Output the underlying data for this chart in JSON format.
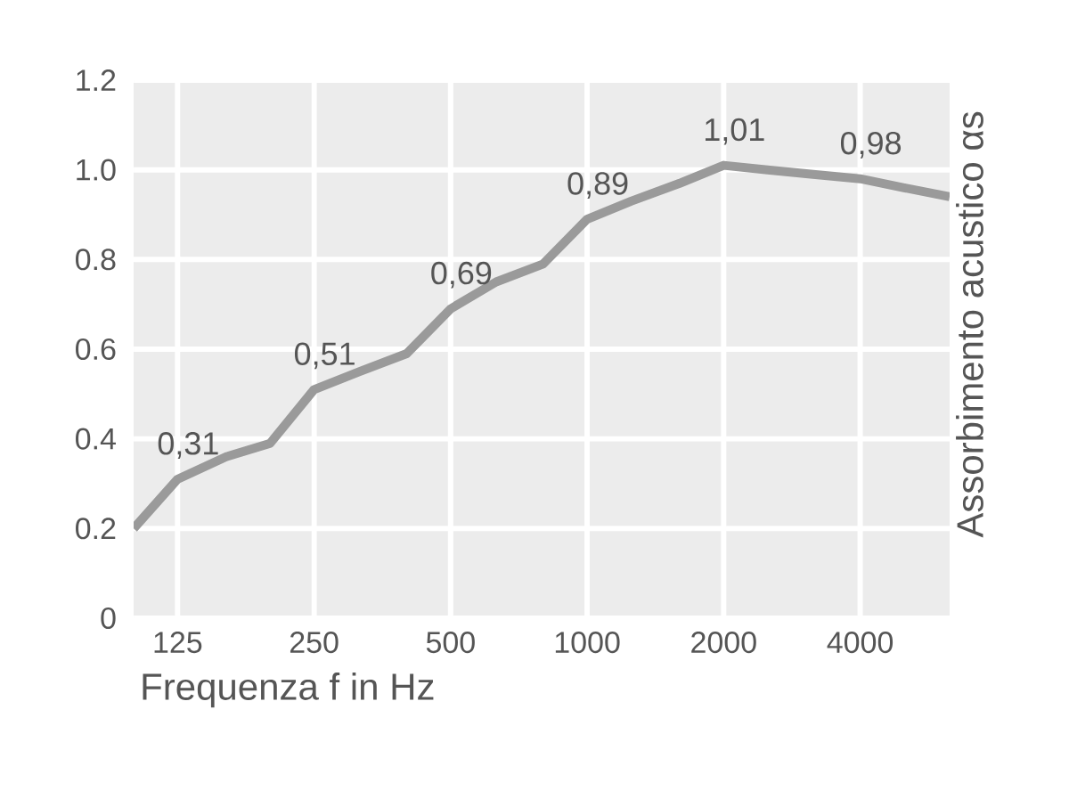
{
  "chart_data": {
    "type": "line",
    "xlabel": "Frequenza f in Hz",
    "ylabel": "Assorbimento acustico αs",
    "log": "x",
    "grid": true,
    "x": [
      100,
      125,
      160,
      200,
      250,
      315,
      400,
      500,
      630,
      800,
      1000,
      1250,
      1600,
      2000,
      2500,
      3150,
      4000,
      5000,
      6300
    ],
    "series": [
      {
        "color": "#9a9a9a",
        "values": [
          0.2,
          0.31,
          0.36,
          0.39,
          0.51,
          0.55,
          0.59,
          0.69,
          0.75,
          0.79,
          0.89,
          0.93,
          0.97,
          1.01,
          1.0,
          0.99,
          0.98,
          0.96,
          0.94
        ],
        "value_labels": [
          null,
          "0,31",
          null,
          null,
          "0,51",
          null,
          null,
          "0,69",
          null,
          null,
          "0,89",
          null,
          null,
          "1,01",
          null,
          null,
          "0,98",
          null,
          null
        ]
      }
    ],
    "xlim": [
      100,
      6300
    ],
    "xticks": [
      125,
      250,
      500,
      1000,
      2000,
      4000
    ],
    "ylim": [
      0,
      1.2
    ],
    "yticks": [
      0,
      0.2,
      0.4,
      0.6,
      0.8,
      {
        "value": 1,
        "label": "1.0"
      },
      1.2
    ]
  }
}
